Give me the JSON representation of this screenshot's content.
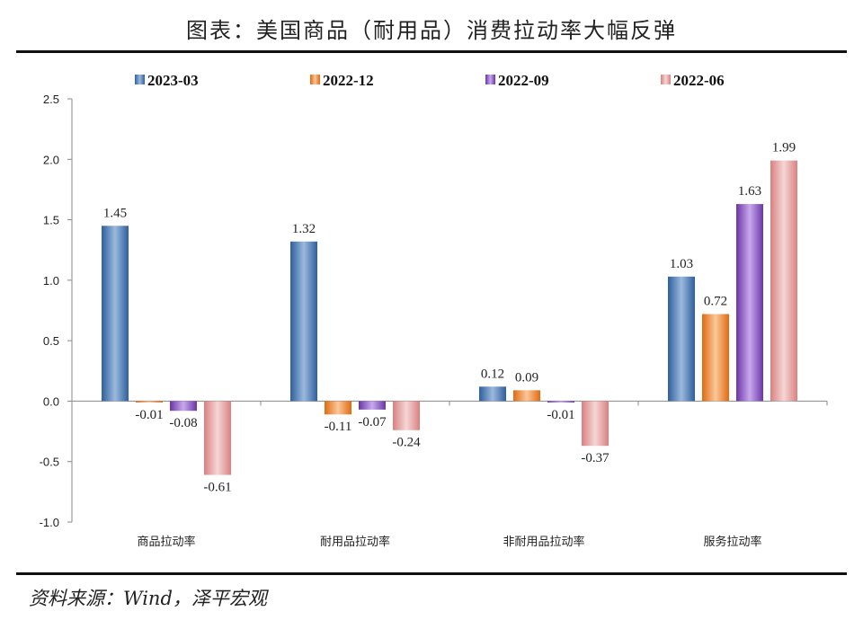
{
  "title": "图表：美国商品（耐用品）消费拉动率大幅反弹",
  "source": "资料来源：Wind，泽平宏观",
  "chart_data": {
    "type": "bar",
    "title": "图表：美国商品（耐用品）消费拉动率大幅反弹",
    "xlabel": "",
    "ylabel": "",
    "ylim": [
      -1.0,
      2.5
    ],
    "yticks": [
      "2.5",
      "2.0",
      "1.5",
      "1.0",
      "0.5",
      "0.0",
      "-0.5",
      "-1.0"
    ],
    "ytick_values": [
      2.5,
      2.0,
      1.5,
      1.0,
      0.5,
      0.0,
      -0.5,
      -1.0
    ],
    "grid": false,
    "legend_position": "top",
    "categories": [
      "商品拉动率",
      "耐用品拉动率",
      "非耐用品拉动率",
      "服务拉动率"
    ],
    "series": [
      {
        "name": "2023-03",
        "color": "#4f81bd",
        "dark": "#2e5f9e",
        "light": "#9bb9dc",
        "values": [
          1.45,
          1.32,
          0.12,
          1.03
        ],
        "labels": [
          "1.45",
          "1.32",
          "0.12",
          "1.03"
        ]
      },
      {
        "name": "2022-12",
        "color": "#f79646",
        "dark": "#e06a10",
        "light": "#fbc79a",
        "values": [
          -0.01,
          -0.11,
          0.09,
          0.72
        ],
        "labels": [
          "-0.01",
          "-0.11",
          "0.09",
          "0.72"
        ]
      },
      {
        "name": "2022-09",
        "color": "#8e5cc9",
        "dark": "#6a35a8",
        "light": "#c8a9ec",
        "values": [
          -0.08,
          -0.07,
          -0.01,
          1.63
        ],
        "labels": [
          "-0.08",
          "-0.07",
          "-0.01",
          "1.63"
        ]
      },
      {
        "name": "2022-06",
        "color": "#e6a5a5",
        "dark": "#d98080",
        "light": "#f6d6d6",
        "values": [
          -0.61,
          -0.24,
          -0.37,
          1.99
        ],
        "labels": [
          "-0.61",
          "-0.24",
          "-0.37",
          "1.99"
        ]
      }
    ]
  }
}
